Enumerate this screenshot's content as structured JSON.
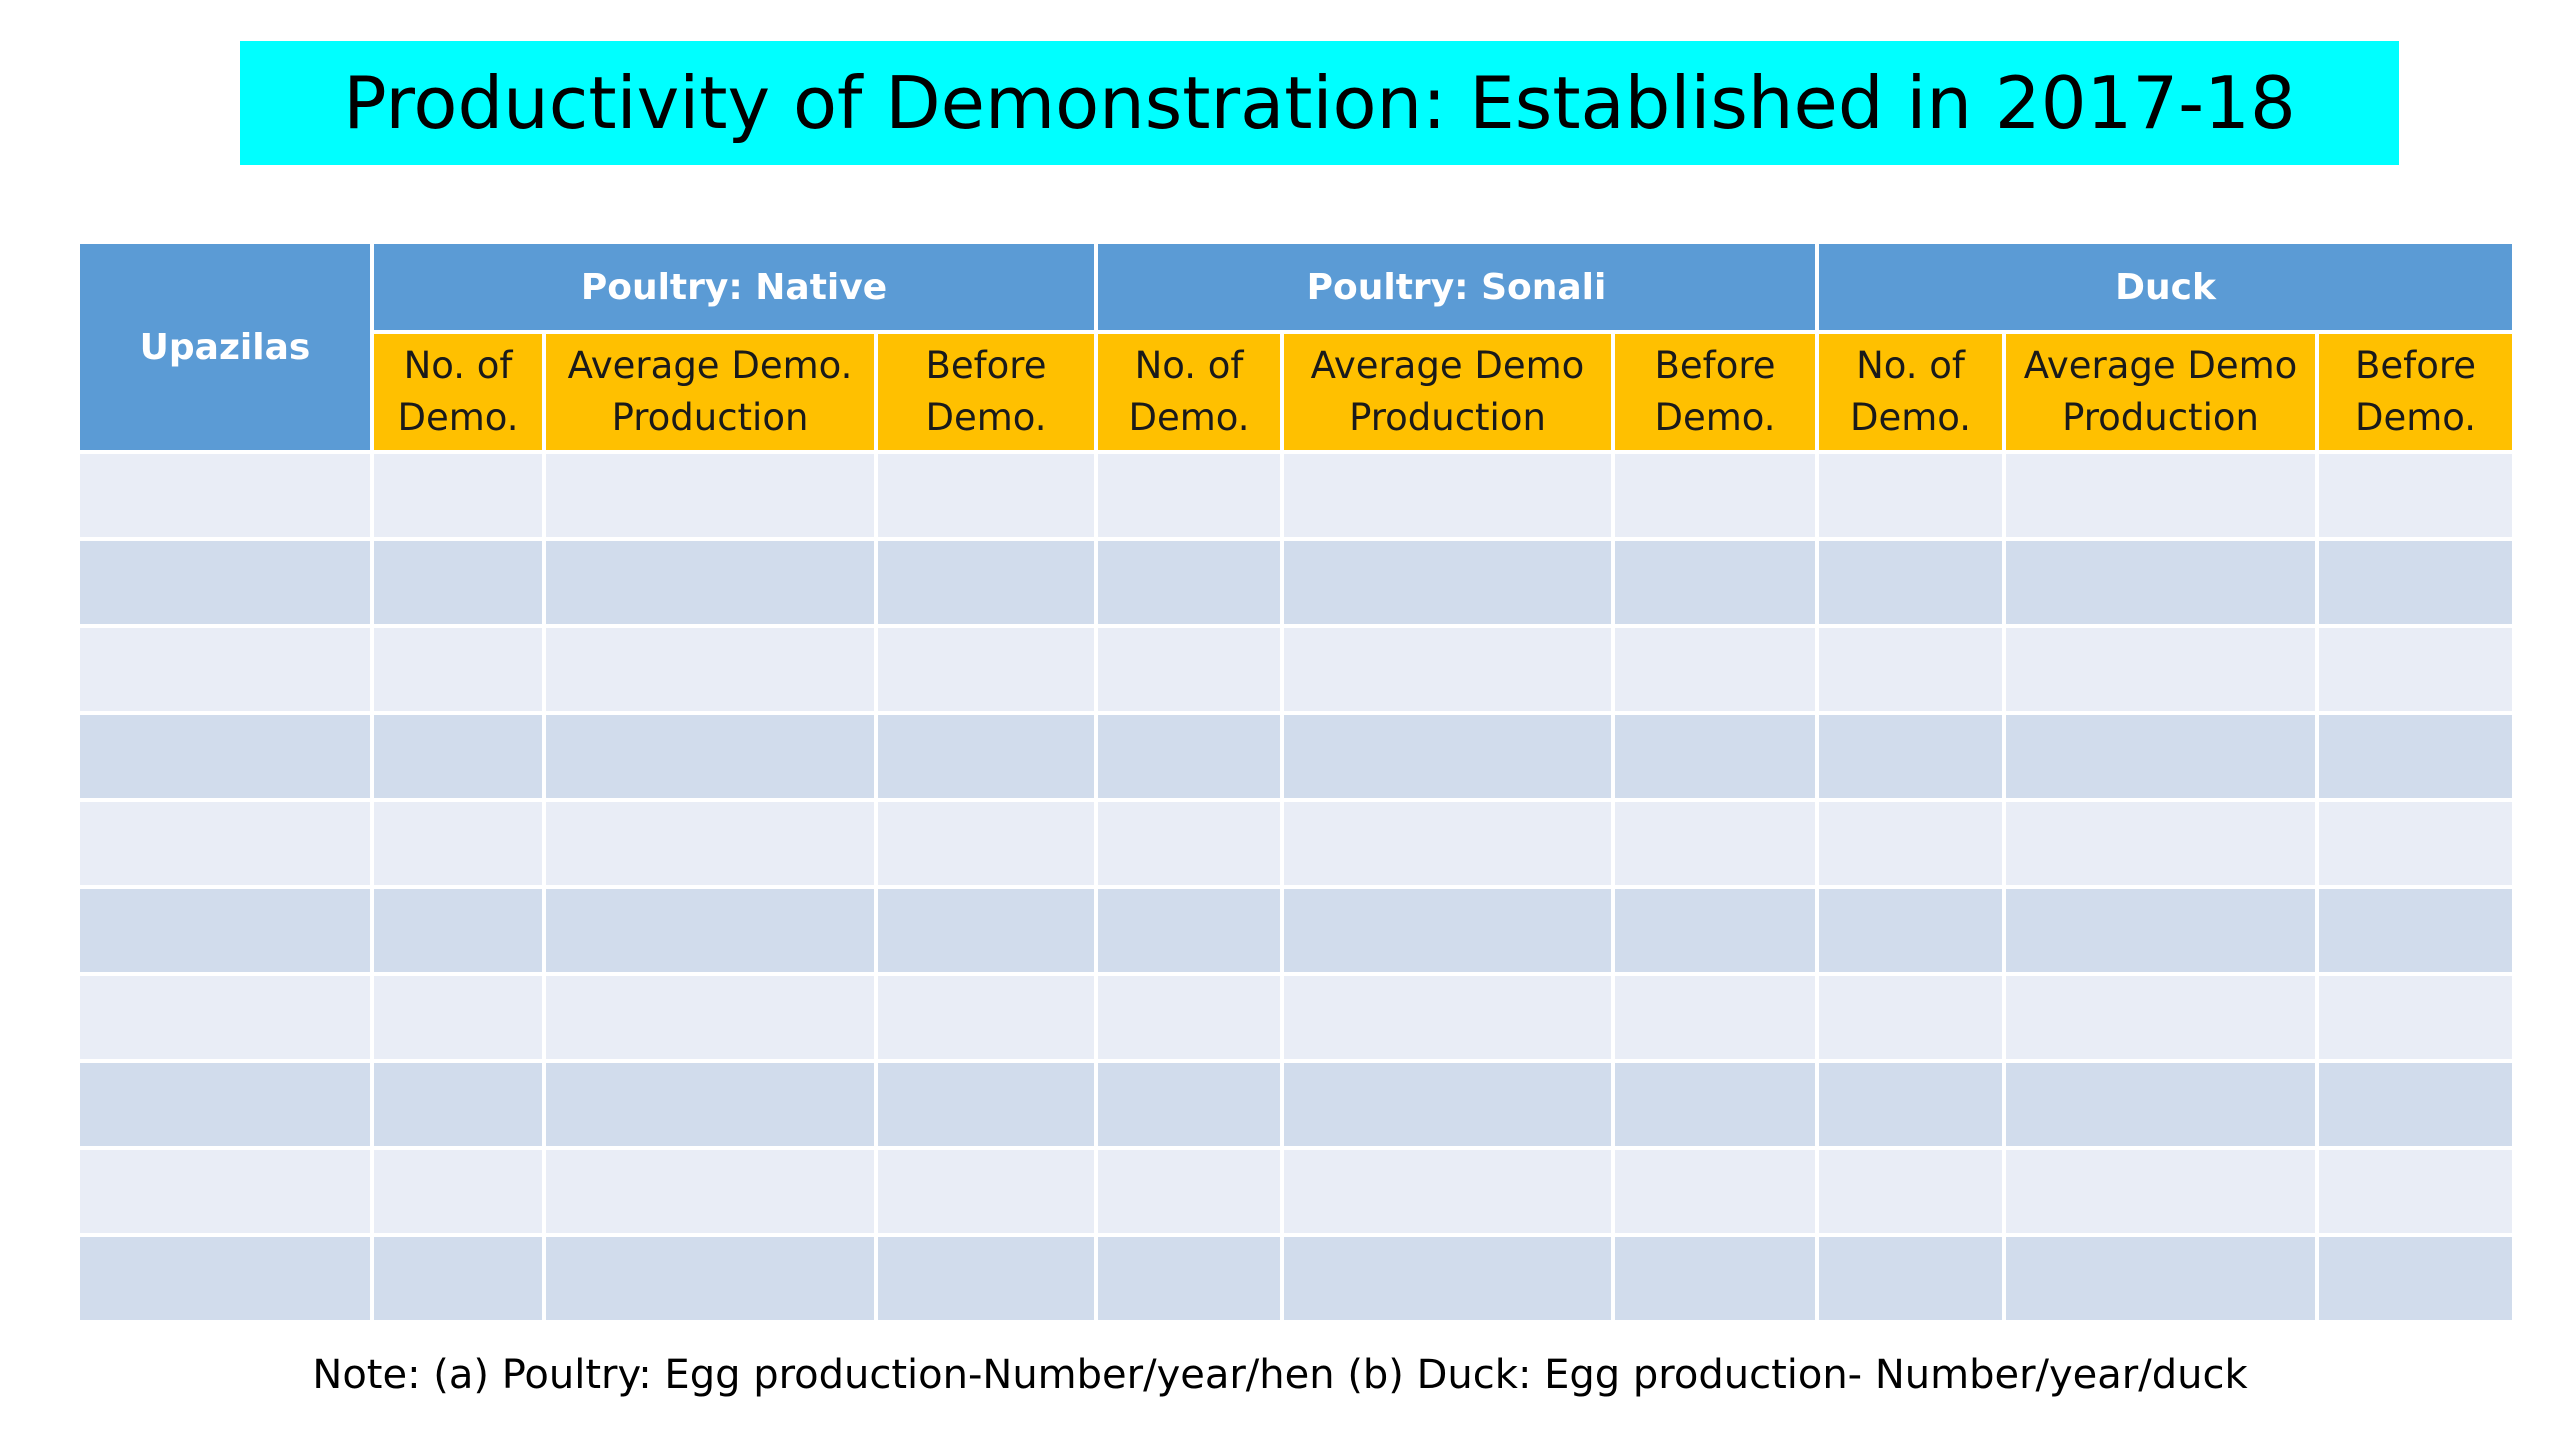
{
  "title": "Productivity of Demonstration: Established in 2017-18",
  "table": {
    "row_header": "Upazilas",
    "groups": [
      {
        "label": "Poultry: Native",
        "columns": [
          {
            "line1": "No. of",
            "line2": "Demo."
          },
          {
            "line1": "Average Demo.",
            "line2": "Production"
          },
          {
            "line1": "Before",
            "line2": "Demo."
          }
        ]
      },
      {
        "label": "Poultry: Sonali",
        "columns": [
          {
            "line1": "No. of",
            "line2": "Demo."
          },
          {
            "line1": "Average Demo",
            "line2": "Production"
          },
          {
            "line1": "Before",
            "line2": "Demo."
          }
        ]
      },
      {
        "label": "Duck",
        "columns": [
          {
            "line1": "No. of",
            "line2": "Demo."
          },
          {
            "line1": "Average Demo",
            "line2": "Production"
          },
          {
            "line1": "Before",
            "line2": "Demo."
          }
        ]
      }
    ],
    "rows": [
      [
        "",
        "",
        "",
        "",
        "",
        "",
        "",
        "",
        "",
        ""
      ],
      [
        "",
        "",
        "",
        "",
        "",
        "",
        "",
        "",
        "",
        ""
      ],
      [
        "",
        "",
        "",
        "",
        "",
        "",
        "",
        "",
        "",
        ""
      ],
      [
        "",
        "",
        "",
        "",
        "",
        "",
        "",
        "",
        "",
        ""
      ],
      [
        "",
        "",
        "",
        "",
        "",
        "",
        "",
        "",
        "",
        ""
      ],
      [
        "",
        "",
        "",
        "",
        "",
        "",
        "",
        "",
        "",
        ""
      ],
      [
        "",
        "",
        "",
        "",
        "",
        "",
        "",
        "",
        "",
        ""
      ],
      [
        "",
        "",
        "",
        "",
        "",
        "",
        "",
        "",
        "",
        ""
      ],
      [
        "",
        "",
        "",
        "",
        "",
        "",
        "",
        "",
        "",
        ""
      ],
      [
        "",
        "",
        "",
        "",
        "",
        "",
        "",
        "",
        "",
        ""
      ]
    ]
  },
  "note": "Note: (a) Poultry: Egg production-Number/year/hen  (b) Duck: Egg production- Number/year/duck",
  "colors": {
    "title_background": "#00ffff",
    "group_header": "#5b9bd5",
    "sub_header": "#ffc000",
    "row_light": "#e9edf6",
    "row_dark": "#d1dcec"
  }
}
